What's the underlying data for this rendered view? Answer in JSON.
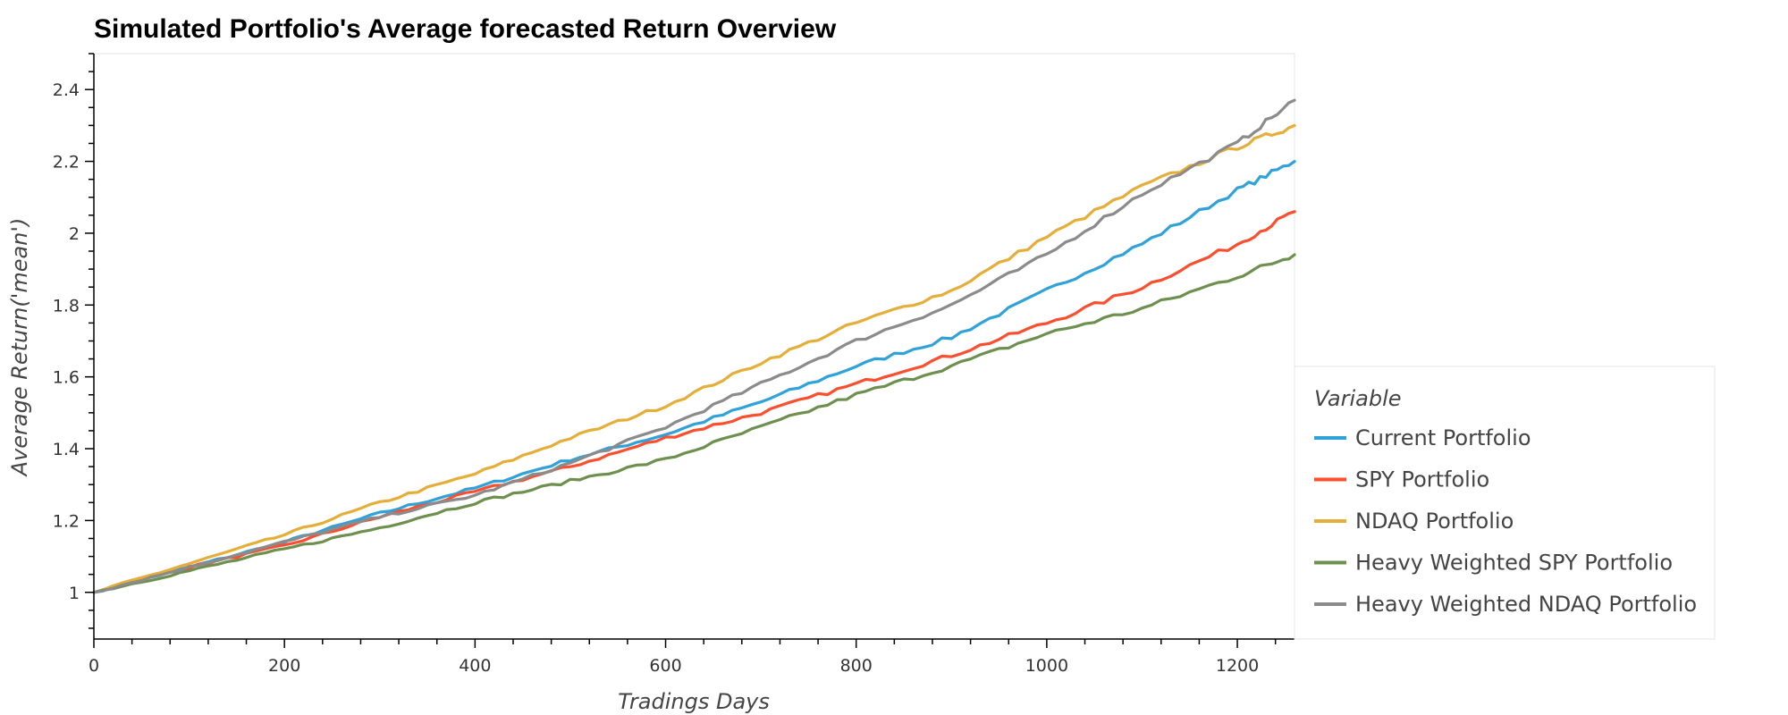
{
  "chart_data": {
    "type": "line",
    "title": "Simulated Portfolio's Average forecasted Return Overview",
    "xlabel": "Tradings Days",
    "ylabel": "Average Return('mean')",
    "xlim": [
      0,
      1260
    ],
    "ylim": [
      0.87,
      2.5
    ],
    "x_ticks": [
      0,
      200,
      400,
      600,
      800,
      1000,
      1200
    ],
    "x_tick_labels": [
      "0",
      "200",
      "400",
      "600",
      "800",
      "1000",
      "1200"
    ],
    "y_ticks": [
      1,
      1.2,
      1.4,
      1.6,
      1.8,
      2,
      2.2,
      2.4
    ],
    "y_tick_labels": [
      "1",
      "1.2",
      "1.4",
      "1.6",
      "1.8",
      "2",
      "2.2",
      "2.4"
    ],
    "grid": false,
    "legend": {
      "title": "Variable",
      "position": "right"
    },
    "x": [
      0,
      100,
      200,
      300,
      400,
      500,
      600,
      700,
      800,
      900,
      1000,
      1100,
      1200,
      1260
    ],
    "series": [
      {
        "name": "Current Portfolio",
        "color": "#30a2da",
        "values": [
          1.0,
          1.07,
          1.14,
          1.22,
          1.29,
          1.37,
          1.44,
          1.53,
          1.63,
          1.71,
          1.84,
          1.97,
          2.12,
          2.2
        ]
      },
      {
        "name": "SPY Portfolio",
        "color": "#fc4f30",
        "values": [
          1.0,
          1.07,
          1.13,
          1.21,
          1.28,
          1.35,
          1.43,
          1.5,
          1.58,
          1.66,
          1.75,
          1.85,
          1.97,
          2.06
        ]
      },
      {
        "name": "NDAQ Portfolio",
        "color": "#e5ae38",
        "values": [
          1.0,
          1.08,
          1.16,
          1.25,
          1.33,
          1.43,
          1.52,
          1.64,
          1.75,
          1.84,
          1.99,
          2.13,
          2.24,
          2.3
        ]
      },
      {
        "name": "Heavy Weighted SPY Portfolio",
        "color": "#6d904f",
        "values": [
          1.0,
          1.06,
          1.12,
          1.18,
          1.25,
          1.31,
          1.37,
          1.46,
          1.55,
          1.63,
          1.72,
          1.79,
          1.88,
          1.94
        ]
      },
      {
        "name": "Heavy Weighted NDAQ Portfolio",
        "color": "#8b8b8b",
        "values": [
          1.0,
          1.07,
          1.14,
          1.21,
          1.27,
          1.36,
          1.46,
          1.58,
          1.7,
          1.8,
          1.94,
          2.11,
          2.25,
          2.37
        ]
      }
    ]
  }
}
